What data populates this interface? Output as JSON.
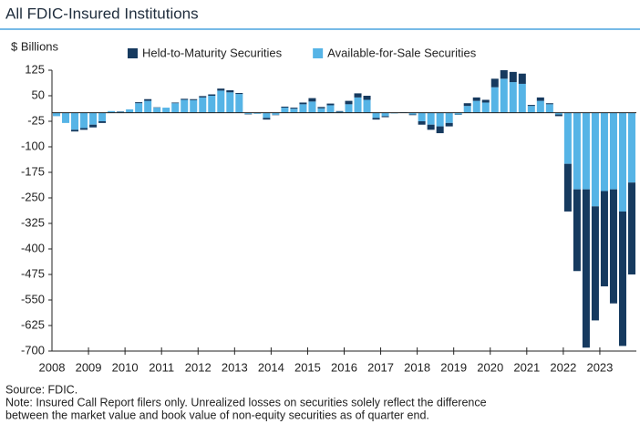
{
  "chart_data": {
    "type": "stacked_bar",
    "title": "All FDIC-Insured Institutions",
    "y_label": "$ Billions",
    "categories": [
      "2008",
      null,
      null,
      null,
      "2009",
      null,
      null,
      null,
      "2010",
      null,
      null,
      null,
      "2011",
      null,
      null,
      null,
      "2012",
      null,
      null,
      null,
      "2013",
      null,
      null,
      null,
      "2014",
      null,
      null,
      null,
      "2015",
      null,
      null,
      null,
      "2016",
      null,
      null,
      null,
      "2017",
      null,
      null,
      null,
      "2018",
      null,
      null,
      null,
      "2019",
      null,
      null,
      null,
      "2020",
      null,
      null,
      null,
      "2021",
      null,
      null,
      null,
      "2022",
      null,
      null,
      null,
      "2023",
      null,
      null,
      null
    ],
    "series": [
      {
        "name": "Available-for-Sale Securities",
        "color": "#56b4e6",
        "values": [
          -10,
          -30,
          -50,
          -45,
          -35,
          -25,
          5,
          3,
          10,
          28,
          35,
          15,
          15,
          28,
          38,
          37,
          45,
          50,
          65,
          60,
          55,
          -4,
          -3,
          -15,
          -6,
          15,
          12,
          25,
          33,
          13,
          22,
          3,
          25,
          45,
          38,
          -15,
          -10,
          -2,
          2,
          -5,
          -25,
          -35,
          -40,
          -30,
          -5,
          20,
          35,
          30,
          75,
          100,
          90,
          85,
          20,
          35,
          25,
          -5,
          -150,
          -225,
          -225,
          -275,
          -230,
          -225,
          -290,
          -205
        ]
      },
      {
        "name": "Held-to-Maturity Securities",
        "color": "#163a5f",
        "values": [
          0,
          0,
          -5,
          -5,
          -8,
          -5,
          0,
          1,
          0,
          3,
          5,
          1,
          0,
          2,
          3,
          3,
          4,
          4,
          6,
          6,
          3,
          -1,
          0,
          -5,
          -1,
          3,
          3,
          5,
          10,
          4,
          5,
          2,
          10,
          12,
          12,
          -5,
          -3,
          0,
          0,
          -2,
          -10,
          -15,
          -20,
          -10,
          -1,
          8,
          10,
          8,
          25,
          25,
          30,
          30,
          3,
          10,
          3,
          -5,
          -140,
          -240,
          -465,
          -335,
          -280,
          -335,
          -395,
          -270
        ]
      }
    ],
    "legend_order": [
      1,
      0
    ],
    "ylim": [
      -700,
      125
    ],
    "yticks": [
      125,
      50,
      -25,
      -100,
      -175,
      -250,
      -325,
      -400,
      -475,
      -550,
      -625,
      -700
    ],
    "grid": false,
    "source": "Source: FDIC.",
    "note": [
      "Note: Insured Call Report filers only. Unrealized losses on securities solely reflect the difference",
      "between the market value and book value of non-equity securities as of quarter end."
    ]
  }
}
